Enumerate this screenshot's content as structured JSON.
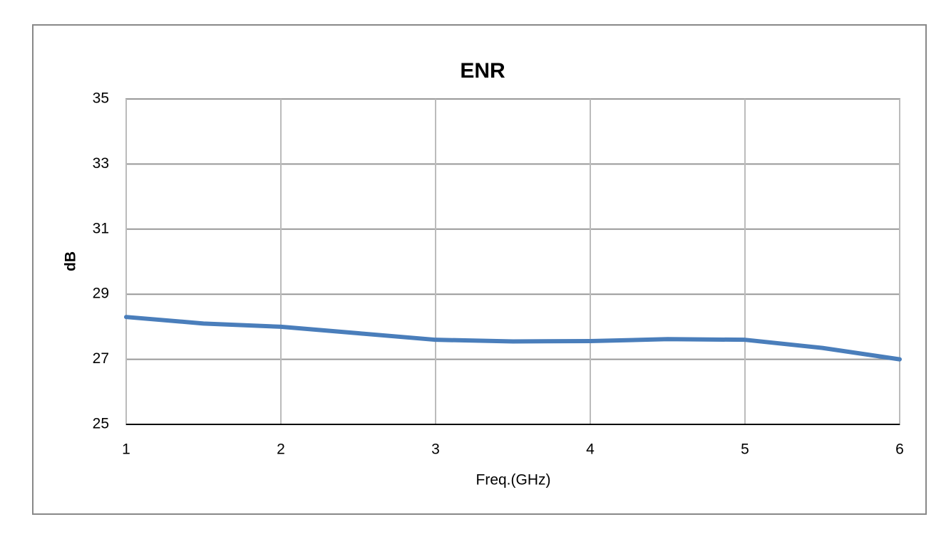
{
  "chart_data": {
    "type": "line",
    "title": "ENR",
    "x_label": "Freq.(GHz)",
    "y_label": "dB",
    "x": [
      1,
      1.5,
      2,
      2.5,
      3,
      3.5,
      4,
      4.5,
      5,
      5.5,
      6
    ],
    "series": [
      {
        "name": "ENR",
        "color": "#4a7ebb",
        "values": [
          28.3,
          28.1,
          28.0,
          27.8,
          27.6,
          27.55,
          27.56,
          27.62,
          27.6,
          27.35,
          27.0
        ]
      }
    ],
    "xlim": [
      1,
      6
    ],
    "xticks": [
      1,
      2,
      3,
      4,
      5,
      6
    ],
    "ylim": [
      25,
      35
    ],
    "yticks": [
      25,
      27,
      29,
      31,
      33,
      35
    ],
    "grid": true
  }
}
